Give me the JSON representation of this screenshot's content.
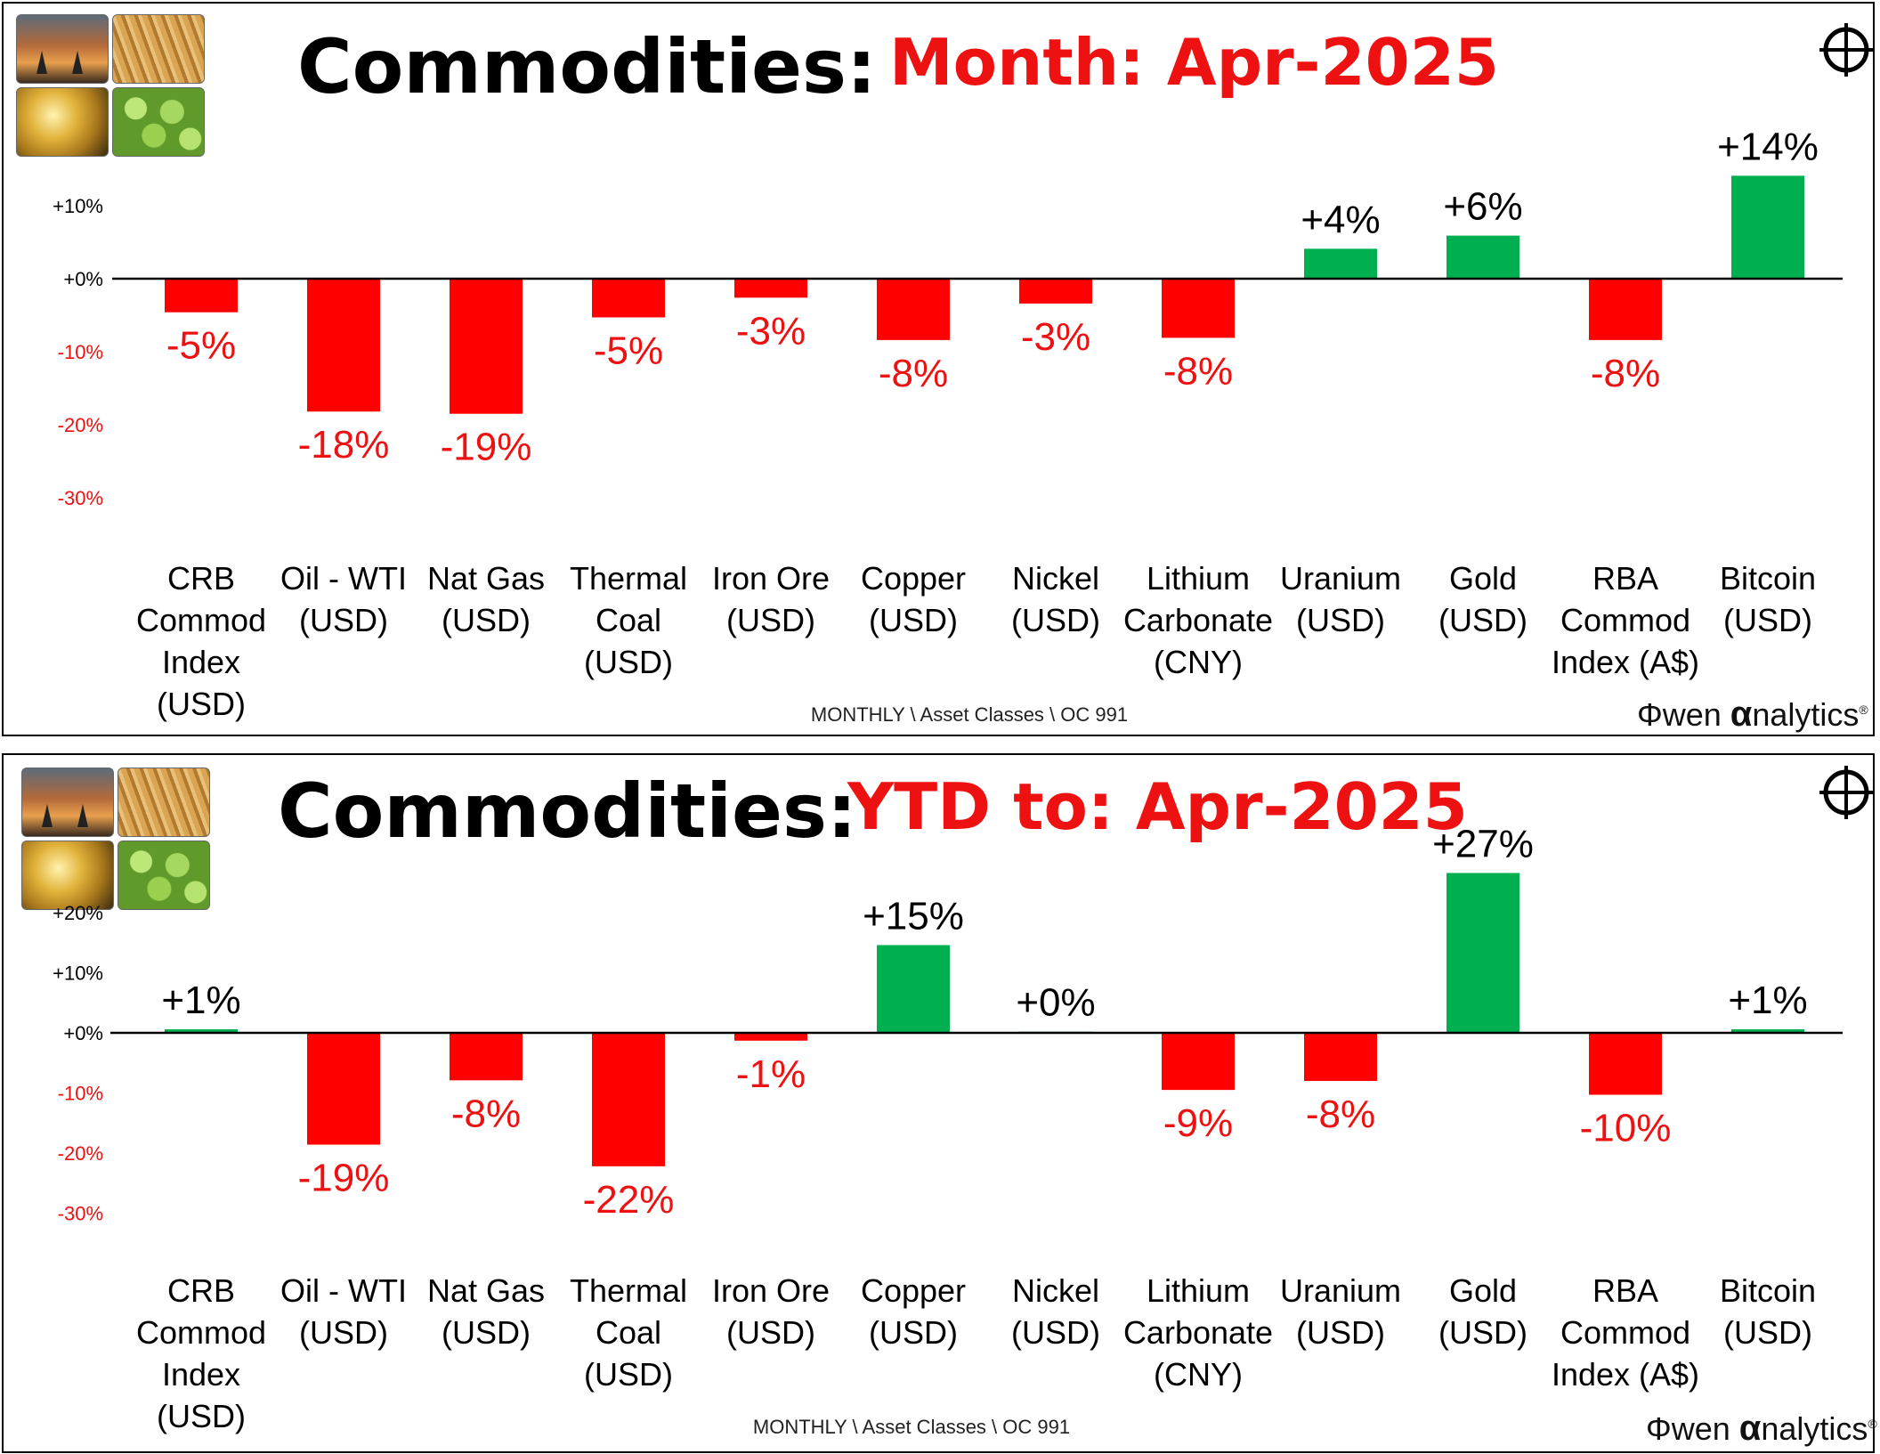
{
  "colors": {
    "positive": "#00b050",
    "negative": "#ff0000",
    "neg_text": "#ee1111",
    "pos_text": "#000000"
  },
  "footer_note": "MONTHLY \\ Asset Classes \\ OC 991",
  "logo": {
    "prefix": "wen ",
    "alpha": "α",
    "suffix": "nalytics",
    "mark": "®"
  },
  "chart_data": [
    {
      "type": "bar",
      "title": "Commodities:",
      "subtitle": "Month:  Apr-2025",
      "categories": [
        [
          "CRB",
          "Commod",
          "Index",
          "(USD)"
        ],
        [
          "Oil - WTI",
          "(USD)"
        ],
        [
          "Nat Gas",
          "(USD)"
        ],
        [
          "Thermal",
          "Coal",
          "(USD)"
        ],
        [
          "Iron Ore",
          "(USD)"
        ],
        [
          "Copper",
          "(USD)"
        ],
        [
          "Nickel",
          "(USD)"
        ],
        [
          "Lithium",
          "Carbonate",
          "(CNY)"
        ],
        [
          "Uranium",
          "(USD)"
        ],
        [
          "Gold",
          "(USD)"
        ],
        [
          "RBA",
          "Commod",
          "Index (A$)"
        ],
        [
          "Bitcoin",
          "(USD)"
        ]
      ],
      "values": [
        -4.6,
        -18.2,
        -18.5,
        -5.3,
        -2.6,
        -8.4,
        -3.4,
        -8.1,
        4.1,
        5.9,
        -8.4,
        14.1
      ],
      "data_labels": [
        "-5%",
        "-18%",
        "-19%",
        "-5%",
        "-3%",
        "-8%",
        "-3%",
        "-8%",
        "+4%",
        "+6%",
        "-8%",
        "+14%"
      ],
      "y_ticks": [
        10,
        0,
        -10,
        -20,
        -30
      ],
      "y_tick_labels": [
        "+10%",
        "+0%",
        "-10%",
        "-20%",
        "-30%"
      ],
      "ylim": [
        -30,
        14
      ],
      "xlabel": "",
      "ylabel": "",
      "grid": false
    },
    {
      "type": "bar",
      "title": "Commodities:",
      "subtitle": "YTD to:  Apr-2025",
      "categories": [
        [
          "CRB",
          "Commod",
          "Index",
          "(USD)"
        ],
        [
          "Oil - WTI",
          "(USD)"
        ],
        [
          "Nat Gas",
          "(USD)"
        ],
        [
          "Thermal",
          "Coal",
          "(USD)"
        ],
        [
          "Iron Ore",
          "(USD)"
        ],
        [
          "Copper",
          "(USD)"
        ],
        [
          "Nickel",
          "(USD)"
        ],
        [
          "Lithium",
          "Carbonate",
          "(CNY)"
        ],
        [
          "Uranium",
          "(USD)"
        ],
        [
          "Gold",
          "(USD)"
        ],
        [
          "RBA",
          "Commod",
          "Index (A$)"
        ],
        [
          "Bitcoin",
          "(USD)"
        ]
      ],
      "values": [
        0.6,
        -18.6,
        -7.9,
        -22.2,
        -1.3,
        14.6,
        0.2,
        -9.5,
        -8.0,
        26.6,
        -10.3,
        0.6
      ],
      "data_labels": [
        "+1%",
        "-19%",
        "-8%",
        "-22%",
        "-1%",
        "+15%",
        "+0%",
        "-9%",
        "-8%",
        "+27%",
        "-10%",
        "+1%"
      ],
      "y_ticks": [
        20,
        10,
        0,
        -10,
        -20,
        -30
      ],
      "y_tick_labels": [
        "+20%",
        "+10%",
        "+0%",
        "-10%",
        "-20%",
        "-30%"
      ],
      "ylim": [
        -30,
        27
      ],
      "xlabel": "",
      "ylabel": "",
      "grid": false
    }
  ]
}
